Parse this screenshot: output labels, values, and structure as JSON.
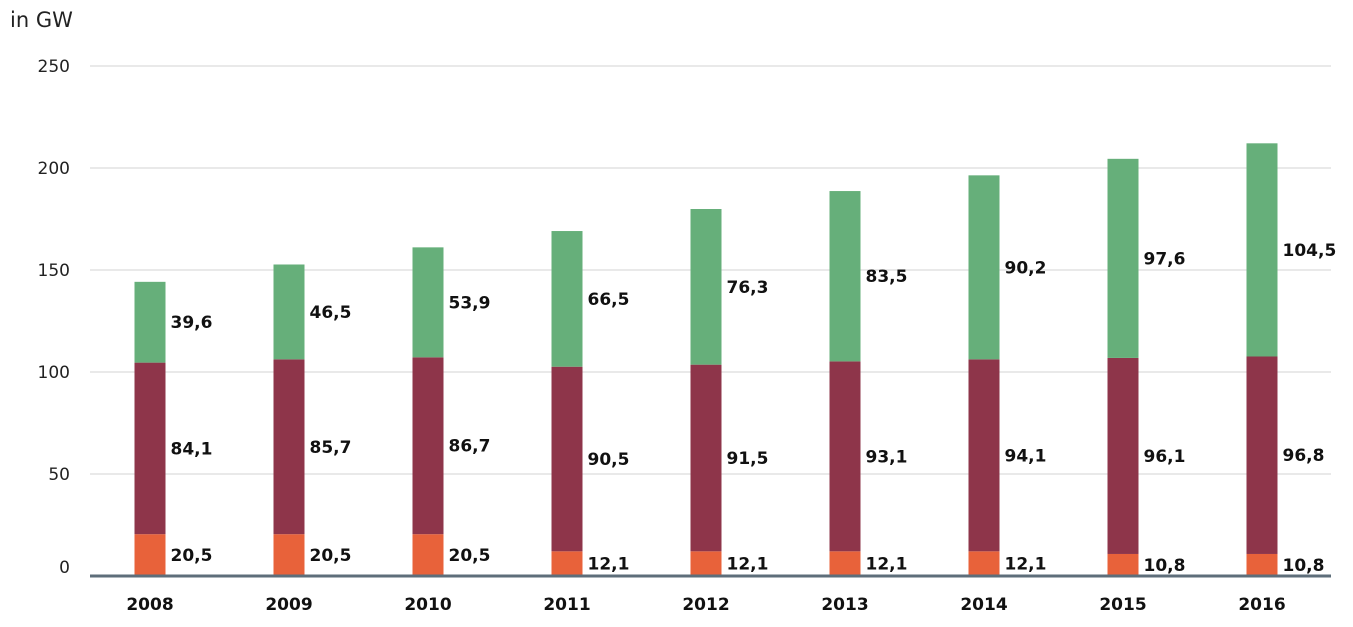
{
  "chart_data": {
    "type": "bar",
    "stacked": true,
    "title": "",
    "unit_label": "in GW",
    "xlabel": "",
    "ylabel": "",
    "ylim": [
      0,
      250
    ],
    "y_ticks": [
      "0",
      "50",
      "100",
      "150",
      "200",
      "250"
    ],
    "grid": true,
    "legend": "none",
    "categories": [
      "2008",
      "2009",
      "2010",
      "2011",
      "2012",
      "2013",
      "2014",
      "2015",
      "2016"
    ],
    "series": [
      {
        "color": "#E8623A",
        "values": [
          20.5,
          20.5,
          20.5,
          12.1,
          12.1,
          12.1,
          12.1,
          10.8,
          10.8
        ],
        "labels": [
          "20,5",
          "20,5",
          "20,5",
          "12,1",
          "12,1",
          "12,1",
          "12,1",
          "10,8",
          "10,8"
        ]
      },
      {
        "color": "#8E354A",
        "values": [
          84.1,
          85.7,
          86.7,
          90.5,
          91.5,
          93.1,
          94.1,
          96.1,
          96.8
        ],
        "labels": [
          "84,1",
          "85,7",
          "86,7",
          "90,5",
          "91,5",
          "93,1",
          "94,1",
          "96,1",
          "96,8"
        ]
      },
      {
        "color": "#66AF7A",
        "values": [
          39.6,
          46.5,
          53.9,
          66.5,
          76.3,
          83.5,
          90.2,
          97.6,
          104.5
        ],
        "labels": [
          "39,6",
          "46,5",
          "53,9",
          "66,5",
          "76,3",
          "83,5",
          "90,2",
          "97,6",
          "104,5"
        ]
      }
    ]
  },
  "colors": {
    "grid": "#D3D3D3",
    "baseline": "#5E6E7A"
  }
}
